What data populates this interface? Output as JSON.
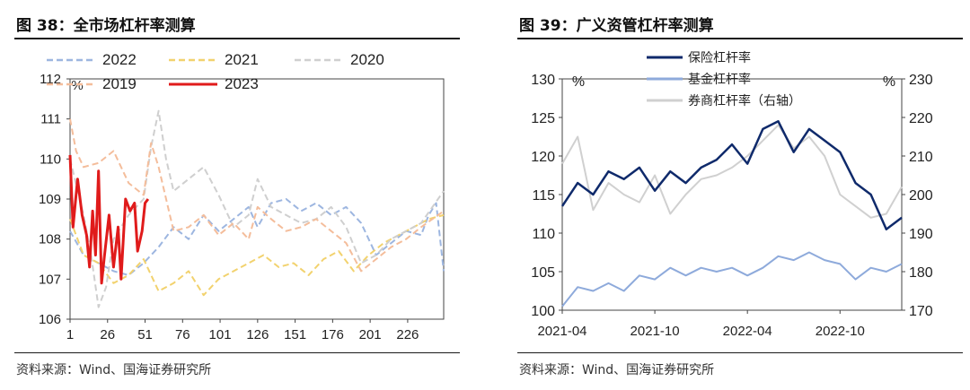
{
  "figures": [
    {
      "title": "图 38：全市场杠杆率测算",
      "source": "资料来源：Wind、国海证券研究所"
    },
    {
      "title": "图 39：广义资管杠杆率测算",
      "source": "资料来源：Wind、国海证券研究所"
    }
  ],
  "chart_data": [
    {
      "type": "line",
      "ylabel": "%",
      "ylim": [
        106,
        112
      ],
      "yticks": [
        106,
        107,
        108,
        109,
        110,
        111,
        112
      ],
      "xlim": [
        1,
        250
      ],
      "xticks": [
        1,
        26,
        51,
        76,
        101,
        126,
        151,
        176,
        201,
        226
      ],
      "legend": "top",
      "series": [
        {
          "name": "2022",
          "color": "#9db6e0",
          "dash": true,
          "points": [
            [
              1,
              108.2
            ],
            [
              10,
              107.6
            ],
            [
              20,
              107.4
            ],
            [
              30,
              107.2
            ],
            [
              40,
              107.1
            ],
            [
              50,
              107.4
            ],
            [
              60,
              107.8
            ],
            [
              70,
              108.3
            ],
            [
              80,
              108.0
            ],
            [
              90,
              108.6
            ],
            [
              100,
              108.2
            ],
            [
              110,
              108.5
            ],
            [
              120,
              108.8
            ],
            [
              126,
              108.3
            ],
            [
              135,
              108.9
            ],
            [
              145,
              109.0
            ],
            [
              155,
              108.7
            ],
            [
              165,
              108.9
            ],
            [
              175,
              108.6
            ],
            [
              185,
              108.8
            ],
            [
              195,
              108.4
            ],
            [
              205,
              107.6
            ],
            [
              215,
              107.9
            ],
            [
              225,
              108.2
            ],
            [
              235,
              108.1
            ],
            [
              240,
              108.6
            ],
            [
              245,
              108.9
            ],
            [
              250,
              107.2
            ]
          ]
        },
        {
          "name": "2021",
          "color": "#f2d26e",
          "dash": true,
          "points": [
            [
              1,
              108.5
            ],
            [
              10,
              107.6
            ],
            [
              20,
              107.4
            ],
            [
              30,
              106.9
            ],
            [
              40,
              107.1
            ],
            [
              50,
              107.5
            ],
            [
              60,
              106.7
            ],
            [
              70,
              106.9
            ],
            [
              80,
              107.2
            ],
            [
              90,
              106.6
            ],
            [
              100,
              107.0
            ],
            [
              110,
              107.2
            ],
            [
              120,
              107.4
            ],
            [
              130,
              107.6
            ],
            [
              140,
              107.3
            ],
            [
              150,
              107.4
            ],
            [
              160,
              107.1
            ],
            [
              170,
              107.5
            ],
            [
              180,
              107.7
            ],
            [
              190,
              107.2
            ],
            [
              200,
              107.6
            ],
            [
              210,
              107.9
            ],
            [
              220,
              108.1
            ],
            [
              230,
              108.3
            ],
            [
              240,
              108.5
            ],
            [
              250,
              108.6
            ]
          ]
        },
        {
          "name": "2020",
          "color": "#cfcfcf",
          "dash": true,
          "points": [
            [
              1,
              110.0
            ],
            [
              10,
              108.6
            ],
            [
              15,
              107.6
            ],
            [
              20,
              106.3
            ],
            [
              25,
              106.8
            ],
            [
              30,
              108.0
            ],
            [
              40,
              108.6
            ],
            [
              50,
              109.0
            ],
            [
              55,
              110.3
            ],
            [
              60,
              111.2
            ],
            [
              65,
              110.0
            ],
            [
              70,
              109.2
            ],
            [
              80,
              109.5
            ],
            [
              90,
              109.8
            ],
            [
              100,
              109.1
            ],
            [
              110,
              108.3
            ],
            [
              120,
              108.6
            ],
            [
              126,
              109.5
            ],
            [
              135,
              108.8
            ],
            [
              145,
              108.6
            ],
            [
              155,
              108.4
            ],
            [
              165,
              108.5
            ],
            [
              175,
              108.8
            ],
            [
              185,
              108.3
            ],
            [
              195,
              107.4
            ],
            [
              205,
              107.6
            ],
            [
              215,
              108.0
            ],
            [
              225,
              108.2
            ],
            [
              235,
              108.4
            ],
            [
              250,
              109.2
            ]
          ]
        },
        {
          "name": "2019",
          "color": "#f4bd9b",
          "dash": true,
          "points": [
            [
              1,
              111.0
            ],
            [
              5,
              110.2
            ],
            [
              10,
              109.8
            ],
            [
              20,
              109.9
            ],
            [
              30,
              110.2
            ],
            [
              40,
              109.4
            ],
            [
              50,
              109.1
            ],
            [
              55,
              110.4
            ],
            [
              60,
              109.8
            ],
            [
              70,
              108.2
            ],
            [
              80,
              108.3
            ],
            [
              90,
              108.6
            ],
            [
              100,
              108.1
            ],
            [
              110,
              108.4
            ],
            [
              120,
              108.0
            ],
            [
              126,
              108.8
            ],
            [
              135,
              108.5
            ],
            [
              145,
              108.2
            ],
            [
              155,
              108.3
            ],
            [
              165,
              108.5
            ],
            [
              175,
              108.2
            ],
            [
              185,
              107.9
            ],
            [
              195,
              107.2
            ],
            [
              205,
              107.5
            ],
            [
              215,
              107.8
            ],
            [
              225,
              108.0
            ],
            [
              235,
              108.3
            ],
            [
              250,
              108.7
            ]
          ]
        },
        {
          "name": "2023",
          "color": "#e01b1b",
          "dash": false,
          "points": [
            [
              1,
              110.1
            ],
            [
              3,
              108.3
            ],
            [
              6,
              109.5
            ],
            [
              9,
              108.6
            ],
            [
              12,
              108.1
            ],
            [
              14,
              107.3
            ],
            [
              16,
              108.7
            ],
            [
              18,
              107.6
            ],
            [
              20,
              109.7
            ],
            [
              22,
              106.9
            ],
            [
              24,
              107.6
            ],
            [
              27,
              108.6
            ],
            [
              30,
              107.3
            ],
            [
              33,
              108.3
            ],
            [
              35,
              107.0
            ],
            [
              38,
              109.0
            ],
            [
              41,
              108.7
            ],
            [
              44,
              108.9
            ],
            [
              46,
              107.7
            ],
            [
              49,
              108.2
            ],
            [
              51,
              108.9
            ],
            [
              53,
              109.0
            ]
          ]
        }
      ]
    },
    {
      "type": "line",
      "ylabel": "%",
      "y2label": "%",
      "ylim": [
        100,
        130
      ],
      "yticks": [
        100,
        105,
        110,
        115,
        120,
        125,
        130
      ],
      "y2lim": [
        170,
        230
      ],
      "y2ticks": [
        170,
        180,
        190,
        200,
        210,
        220,
        230
      ],
      "xlim": [
        "2021-04",
        "2023-02"
      ],
      "xticks": [
        "2021-04",
        "2021-10",
        "2022-04",
        "2022-10"
      ],
      "legend": "top-center",
      "series": [
        {
          "name": "保险杠杆率",
          "axis": "left",
          "color": "#0f2a6b",
          "points": [
            [
              "2021-04",
              113.5
            ],
            [
              "2021-05",
              116.5
            ],
            [
              "2021-06",
              115.0
            ],
            [
              "2021-07",
              118.0
            ],
            [
              "2021-08",
              117.0
            ],
            [
              "2021-09",
              118.5
            ],
            [
              "2021-10",
              115.5
            ],
            [
              "2021-11",
              118.0
            ],
            [
              "2021-12",
              116.5
            ],
            [
              "2022-01",
              118.5
            ],
            [
              "2022-02",
              119.5
            ],
            [
              "2022-03",
              121.5
            ],
            [
              "2022-04",
              119.0
            ],
            [
              "2022-05",
              123.5
            ],
            [
              "2022-06",
              124.5
            ],
            [
              "2022-07",
              120.5
            ],
            [
              "2022-08",
              123.5
            ],
            [
              "2022-09",
              122.0
            ],
            [
              "2022-10",
              120.5
            ],
            [
              "2022-11",
              116.5
            ],
            [
              "2022-12",
              115.0
            ],
            [
              "2023-01",
              110.5
            ],
            [
              "2023-02",
              112.0
            ]
          ]
        },
        {
          "name": "基金杠杆率",
          "axis": "left",
          "color": "#8eaadb",
          "points": [
            [
              "2021-04",
              100.5
            ],
            [
              "2021-05",
              103.0
            ],
            [
              "2021-06",
              102.5
            ],
            [
              "2021-07",
              103.5
            ],
            [
              "2021-08",
              102.5
            ],
            [
              "2021-09",
              104.5
            ],
            [
              "2021-10",
              104.0
            ],
            [
              "2021-11",
              105.5
            ],
            [
              "2021-12",
              104.5
            ],
            [
              "2022-01",
              105.5
            ],
            [
              "2022-02",
              105.0
            ],
            [
              "2022-03",
              105.5
            ],
            [
              "2022-04",
              104.5
            ],
            [
              "2022-05",
              105.5
            ],
            [
              "2022-06",
              107.0
            ],
            [
              "2022-07",
              106.5
            ],
            [
              "2022-08",
              107.5
            ],
            [
              "2022-09",
              106.5
            ],
            [
              "2022-10",
              106.0
            ],
            [
              "2022-11",
              104.0
            ],
            [
              "2022-12",
              105.5
            ],
            [
              "2023-01",
              105.0
            ],
            [
              "2023-02",
              106.0
            ]
          ]
        },
        {
          "name": "券商杠杆率（右轴）",
          "axis": "right",
          "color": "#d0d0d0",
          "points": [
            [
              "2021-04",
              208
            ],
            [
              "2021-05",
              215
            ],
            [
              "2021-06",
              196
            ],
            [
              "2021-07",
              203
            ],
            [
              "2021-08",
              200
            ],
            [
              "2021-09",
              198
            ],
            [
              "2021-10",
              205
            ],
            [
              "2021-11",
              195
            ],
            [
              "2021-12",
              200
            ],
            [
              "2022-01",
              204
            ],
            [
              "2022-02",
              205
            ],
            [
              "2022-03",
              207
            ],
            [
              "2022-04",
              210
            ],
            [
              "2022-05",
              214
            ],
            [
              "2022-06",
              218
            ],
            [
              "2022-07",
              212
            ],
            [
              "2022-08",
              215
            ],
            [
              "2022-09",
              210
            ],
            [
              "2022-10",
              200
            ],
            [
              "2022-11",
              197
            ],
            [
              "2022-12",
              194
            ],
            [
              "2023-01",
              195
            ],
            [
              "2023-02",
              202
            ]
          ]
        }
      ]
    }
  ]
}
